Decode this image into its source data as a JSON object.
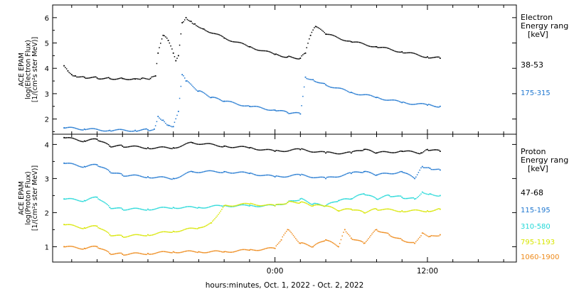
{
  "chart_data": [
    {
      "type": "scatter",
      "panel": "electron",
      "ylabel_lines": [
        "ACE EPAM",
        "log(Electron Flux)",
        "[1/(cm²s ster MeV)]"
      ],
      "ylim": [
        1.4,
        6.5
      ],
      "yticks": [
        2,
        3,
        4,
        5,
        6
      ],
      "legend_title": [
        "Electron",
        "Energy ranges",
        "[keV]"
      ],
      "series": [
        {
          "name": "38-53",
          "color": "#000000",
          "x": [
            -16.6,
            -16.3,
            -16.0,
            -15.7,
            -15.0,
            -14.0,
            -13.0,
            -12.0,
            -11.0,
            -10.5,
            -9.8,
            -9.4,
            -9.2,
            -8.8,
            -8.4,
            -8.0,
            -7.8,
            -7.6,
            -7.3,
            -7.0,
            -6.6,
            -6.3,
            -5.6,
            -4.0,
            -2.0,
            0.0,
            1.0,
            2.0,
            2.4,
            2.8,
            3.2,
            4.0,
            6.0,
            8.0,
            10.0,
            12.0,
            13.0
          ],
          "y": [
            4.1,
            3.9,
            3.75,
            3.7,
            3.65,
            3.62,
            3.6,
            3.6,
            3.58,
            3.6,
            3.6,
            3.7,
            4.6,
            5.3,
            5.1,
            4.6,
            4.3,
            4.5,
            5.8,
            6.0,
            5.85,
            5.75,
            5.55,
            5.2,
            4.85,
            4.55,
            4.45,
            4.4,
            4.6,
            5.3,
            5.65,
            5.35,
            5.05,
            4.85,
            4.65,
            4.45,
            4.4
          ]
        },
        {
          "name": "175-315",
          "color": "#1f77d0",
          "x": [
            -16.6,
            -15.0,
            -13.0,
            -11.0,
            -10.0,
            -9.5,
            -9.2,
            -8.8,
            -8.4,
            -8.0,
            -7.6,
            -7.3,
            -7.0,
            -6.0,
            -5.0,
            -4.0,
            -2.0,
            0.0,
            1.0,
            2.0,
            2.4,
            3.0,
            4.0,
            6.0,
            8.0,
            10.0,
            12.0,
            13.0
          ],
          "y": [
            1.65,
            1.6,
            1.55,
            1.55,
            1.57,
            1.6,
            2.1,
            1.95,
            1.75,
            1.7,
            2.3,
            3.75,
            3.5,
            3.1,
            2.85,
            2.7,
            2.5,
            2.35,
            2.25,
            2.2,
            3.65,
            3.55,
            3.35,
            3.05,
            2.85,
            2.65,
            2.55,
            2.5
          ]
        }
      ]
    },
    {
      "type": "scatter",
      "panel": "proton",
      "ylabel_lines": [
        "ACE EPAM",
        "log(Proton Flux)",
        "[1/(cm²s ster MeV)]"
      ],
      "ylim": [
        0.55,
        4.3
      ],
      "yticks": [
        1,
        2,
        3,
        4
      ],
      "legend_title": [
        "Proton",
        "Energy ranges",
        "[keV]"
      ],
      "series": [
        {
          "name": "47-68",
          "color": "#000000",
          "x": [
            -16.6,
            -15.0,
            -14.0,
            -13.0,
            -12.0,
            -10.0,
            -8.0,
            -6.5,
            -4.0,
            -2.0,
            0.0,
            2.0,
            4.0,
            6.0,
            7.0,
            8.0,
            10.0,
            11.5,
            12.0,
            13.0
          ],
          "y": [
            4.2,
            4.1,
            4.15,
            3.95,
            3.95,
            3.9,
            3.9,
            4.05,
            3.95,
            3.9,
            3.8,
            3.85,
            3.75,
            3.75,
            3.85,
            3.75,
            3.8,
            3.75,
            3.85,
            3.8
          ]
        },
        {
          "name": "115-195",
          "color": "#1f77d0",
          "x": [
            -16.6,
            -15.0,
            -14.0,
            -13.0,
            -12.0,
            -10.0,
            -8.0,
            -6.5,
            -4.0,
            -2.0,
            0.0,
            2.0,
            4.0,
            6.0,
            7.0,
            8.0,
            10.0,
            11.0,
            11.6,
            12.2,
            13.0
          ],
          "y": [
            3.45,
            3.35,
            3.4,
            3.2,
            3.1,
            3.05,
            3.0,
            3.2,
            3.2,
            3.15,
            3.05,
            3.1,
            3.0,
            3.15,
            3.2,
            3.1,
            3.2,
            3.0,
            3.35,
            3.3,
            3.25
          ]
        },
        {
          "name": "310-580",
          "color": "#22d8d8",
          "x": [
            -16.6,
            -15.0,
            -14.0,
            -13.0,
            -12.0,
            -10.0,
            -8.0,
            -6.0,
            -4.0,
            -2.0,
            0.0,
            1.0,
            2.0,
            3.0,
            4.0,
            5.0,
            6.0,
            7.0,
            8.0,
            9.0,
            10.0,
            11.0,
            11.6,
            12.2,
            13.0
          ],
          "y": [
            2.4,
            2.35,
            2.45,
            2.15,
            2.1,
            2.1,
            2.15,
            2.15,
            2.2,
            2.2,
            2.2,
            2.3,
            2.4,
            2.25,
            2.2,
            2.35,
            2.4,
            2.55,
            2.4,
            2.5,
            2.45,
            2.4,
            2.6,
            2.55,
            2.5
          ]
        },
        {
          "name": "795-1193",
          "color": "#d8e600",
          "x": [
            -16.6,
            -15.0,
            -14.0,
            -13.0,
            -12.0,
            -10.0,
            -8.0,
            -6.0,
            -5.0,
            -4.0,
            -2.0,
            0.0,
            1.0,
            2.0,
            3.0,
            4.0,
            5.0,
            6.0,
            7.0,
            8.0,
            10.0,
            12.0,
            13.0
          ],
          "y": [
            1.65,
            1.55,
            1.6,
            1.35,
            1.3,
            1.35,
            1.45,
            1.55,
            1.7,
            2.2,
            2.25,
            2.2,
            2.3,
            2.3,
            2.2,
            2.2,
            2.05,
            2.1,
            2.0,
            2.1,
            2.05,
            2.05,
            2.1
          ]
        },
        {
          "name": "1060-1900",
          "color": "#ee8a1a",
          "x": [
            -16.6,
            -15.0,
            -14.0,
            -13.0,
            -12.0,
            -10.0,
            -8.0,
            -6.0,
            -4.0,
            -2.0,
            0.0,
            0.5,
            1.0,
            2.0,
            3.0,
            4.0,
            5.0,
            5.5,
            6.0,
            7.0,
            8.0,
            9.0,
            10.0,
            11.0,
            11.6,
            12.2,
            13.0
          ],
          "y": [
            1.0,
            0.95,
            1.0,
            0.8,
            0.78,
            0.8,
            0.85,
            0.85,
            0.85,
            0.9,
            0.95,
            1.2,
            1.5,
            1.1,
            1.0,
            1.2,
            1.0,
            1.5,
            1.25,
            1.1,
            1.5,
            1.35,
            1.2,
            1.1,
            1.4,
            1.3,
            1.35
          ]
        }
      ]
    }
  ],
  "time_axis": {
    "xlim": [
      -17.5,
      19.0
    ],
    "tick_values": [
      0,
      12
    ],
    "tick_labels": [
      "0:00",
      "12:00"
    ],
    "minor_tick_step_hours": 2,
    "xlabel": "hours:minutes, Oct.  1, 2022 - Oct.  2, 2022"
  },
  "colors": {
    "axis": "#000000",
    "background": "#ffffff"
  }
}
